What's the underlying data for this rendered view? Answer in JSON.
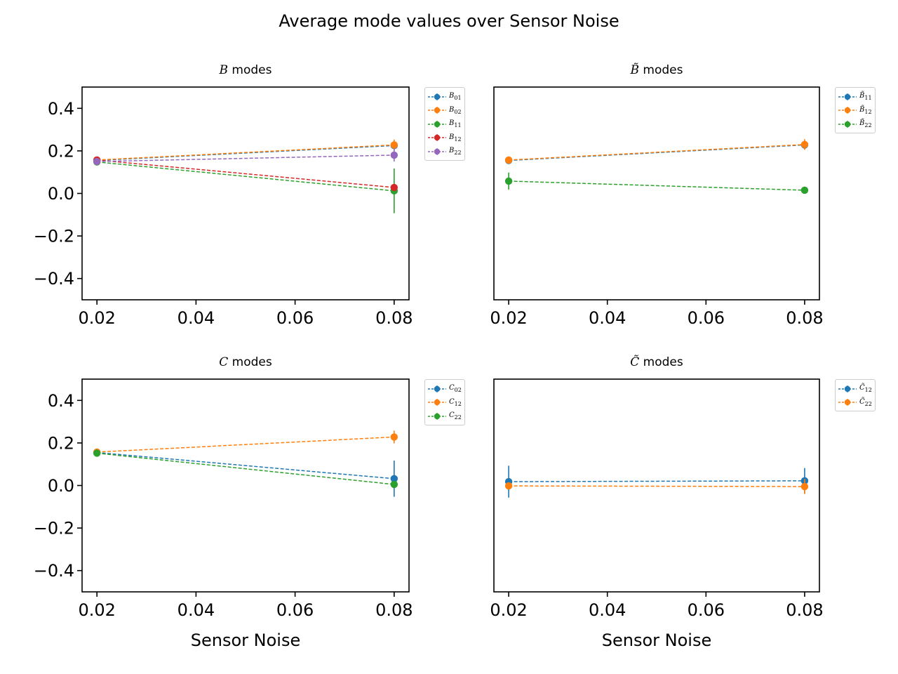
{
  "figure": {
    "title": "Average mode values over Sensor Noise"
  },
  "chart_data": [
    {
      "type": "line",
      "title": "B modes",
      "title_symbol": "B",
      "title_suffix": " modes",
      "xlabel": "",
      "ylabel": "",
      "xlim": [
        0.017,
        0.083
      ],
      "ylim": [
        -0.5,
        0.5
      ],
      "x_ticks": [
        "0.02",
        "0.04",
        "0.06",
        "0.08"
      ],
      "y_ticks": [
        "0.4",
        "0.2",
        "0.0",
        "−0.2",
        "−0.4"
      ],
      "show_y_ticks": true,
      "grid": false,
      "legend_position": "outside-top-right",
      "x": [
        0.02,
        0.08
      ],
      "series": [
        {
          "name": "B01",
          "label_base": "B",
          "label_sub": "01",
          "color": "#1f77b4",
          "values": [
            0.155,
            0.225
          ],
          "errors": [
            0.01,
            0.025
          ]
        },
        {
          "name": "B02",
          "label_base": "B",
          "label_sub": "02",
          "color": "#ff7f0e",
          "values": [
            0.157,
            0.228
          ],
          "errors": [
            0.01,
            0.025
          ]
        },
        {
          "name": "B11",
          "label_base": "B",
          "label_sub": "11",
          "color": "#2ca02c",
          "values": [
            0.148,
            0.012
          ],
          "errors": [
            0.01,
            0.105
          ]
        },
        {
          "name": "B12",
          "label_base": "B",
          "label_sub": "12",
          "color": "#d62728",
          "values": [
            0.157,
            0.028
          ],
          "errors": [
            0.01,
            0.01
          ]
        },
        {
          "name": "B22",
          "label_base": "B",
          "label_sub": "22",
          "color": "#9467bd",
          "values": [
            0.15,
            0.18
          ],
          "errors": [
            0.01,
            0.03
          ]
        }
      ]
    },
    {
      "type": "line",
      "title": "B̃ modes",
      "title_symbol": "B̃",
      "title_suffix": " modes",
      "xlabel": "",
      "ylabel": "",
      "xlim": [
        0.017,
        0.083
      ],
      "ylim": [
        -0.5,
        0.5
      ],
      "x_ticks": [
        "0.02",
        "0.04",
        "0.06",
        "0.08"
      ],
      "y_ticks": [],
      "show_y_ticks": false,
      "grid": false,
      "legend_position": "outside-top-right",
      "x": [
        0.02,
        0.08
      ],
      "series": [
        {
          "name": "B̃11",
          "label_base": "B̃",
          "label_sub": "11",
          "color": "#1f77b4",
          "values": [
            0.155,
            0.228
          ],
          "errors": [
            0.01,
            0.02
          ]
        },
        {
          "name": "B̃12",
          "label_base": "B̃",
          "label_sub": "12",
          "color": "#ff7f0e",
          "values": [
            0.157,
            0.23
          ],
          "errors": [
            0.01,
            0.025
          ]
        },
        {
          "name": "B̃22",
          "label_base": "B̃",
          "label_sub": "22",
          "color": "#2ca02c",
          "values": [
            0.058,
            0.015
          ],
          "errors": [
            0.04,
            0.01
          ]
        }
      ]
    },
    {
      "type": "line",
      "title": "C modes",
      "title_symbol": "C",
      "title_suffix": " modes",
      "xlabel": "Sensor Noise",
      "ylabel": "",
      "xlim": [
        0.017,
        0.083
      ],
      "ylim": [
        -0.5,
        0.5
      ],
      "x_ticks": [
        "0.02",
        "0.04",
        "0.06",
        "0.08"
      ],
      "y_ticks": [
        "0.4",
        "0.2",
        "0.0",
        "−0.2",
        "−0.4"
      ],
      "show_y_ticks": true,
      "grid": false,
      "legend_position": "outside-top-right",
      "x": [
        0.02,
        0.08
      ],
      "series": [
        {
          "name": "C02",
          "label_base": "C",
          "label_sub": "02",
          "color": "#1f77b4",
          "values": [
            0.155,
            0.032
          ],
          "errors": [
            0.01,
            0.085
          ]
        },
        {
          "name": "C12",
          "label_base": "C",
          "label_sub": "12",
          "color": "#ff7f0e",
          "values": [
            0.157,
            0.228
          ],
          "errors": [
            0.01,
            0.03
          ]
        },
        {
          "name": "C22",
          "label_base": "C",
          "label_sub": "22",
          "color": "#2ca02c",
          "values": [
            0.152,
            0.005
          ],
          "errors": [
            0.01,
            0.01
          ]
        }
      ]
    },
    {
      "type": "line",
      "title": "C̃ modes",
      "title_symbol": "C̃",
      "title_suffix": " modes",
      "xlabel": "Sensor Noise",
      "ylabel": "",
      "xlim": [
        0.017,
        0.083
      ],
      "ylim": [
        -0.5,
        0.5
      ],
      "x_ticks": [
        "0.02",
        "0.04",
        "0.06",
        "0.08"
      ],
      "y_ticks": [],
      "show_y_ticks": false,
      "grid": false,
      "legend_position": "outside-top-right",
      "x": [
        0.02,
        0.08
      ],
      "series": [
        {
          "name": "C̃12",
          "label_base": "C̃",
          "label_sub": "12",
          "color": "#1f77b4",
          "values": [
            0.018,
            0.022
          ],
          "errors": [
            0.075,
            0.06
          ]
        },
        {
          "name": "C̃22",
          "label_base": "C̃",
          "label_sub": "22",
          "color": "#ff7f0e",
          "values": [
            -0.002,
            -0.005
          ],
          "errors": [
            0.01,
            0.035
          ]
        }
      ]
    }
  ]
}
